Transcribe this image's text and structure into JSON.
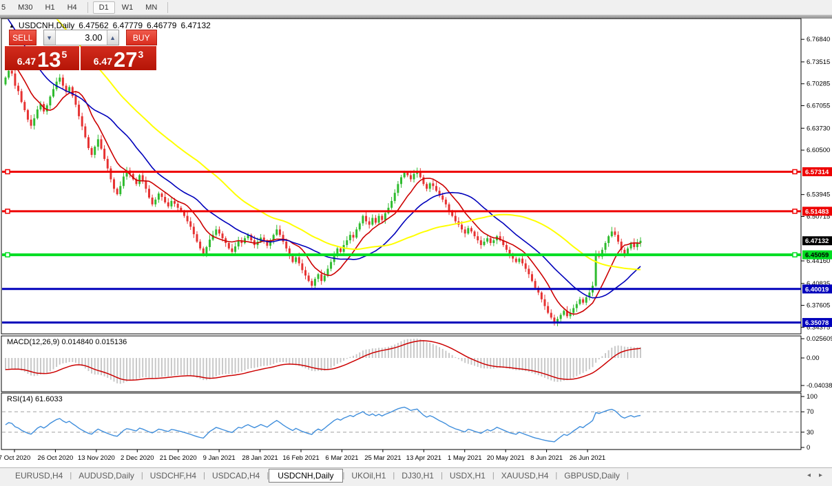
{
  "toolbar": {
    "timeframes": [
      {
        "label": "5",
        "selected": false
      },
      {
        "label": "M30",
        "selected": false
      },
      {
        "label": "H1",
        "selected": false
      },
      {
        "label": "H4",
        "selected": false
      },
      {
        "label": "D1",
        "selected": true
      },
      {
        "label": "W1",
        "selected": false
      },
      {
        "label": "MN",
        "selected": false
      }
    ]
  },
  "symbol_line": {
    "collapse_icon": "▲",
    "symbol": "USDCNH,Daily",
    "open": "6.47562",
    "high": "6.47779",
    "low": "6.46779",
    "close": "6.47132"
  },
  "trade_panel": {
    "sell_label": "SELL",
    "buy_label": "BUY",
    "volume": "3.00",
    "volume_down_icon": "▼",
    "volume_up_icon": "▲",
    "sell_price": {
      "prefix": "6.47",
      "big": "13",
      "sup": "5"
    },
    "buy_price": {
      "prefix": "6.47",
      "big": "27",
      "sup": "3"
    }
  },
  "indicators": {
    "macd_label": "MACD(12,26,9) 0.014840 0.015136",
    "rsi_label": "RSI(14) 61.6033"
  },
  "tab_bar": {
    "tabs": [
      {
        "label": "EURUSD,H4",
        "selected": false
      },
      {
        "label": "AUDUSD,Daily",
        "selected": false
      },
      {
        "label": "USDCHF,H4",
        "selected": false
      },
      {
        "label": "USDCAD,H4",
        "selected": false
      },
      {
        "label": "USDCNH,Daily",
        "selected": true
      },
      {
        "label": "UKOil,H1",
        "selected": false
      },
      {
        "label": "DJ30,H1",
        "selected": false
      },
      {
        "label": "USDX,H1",
        "selected": false
      },
      {
        "label": "XAUUSD,H4",
        "selected": false
      },
      {
        "label": "GBPUSD,Daily",
        "selected": false
      }
    ],
    "left_arrow_icon": "◂",
    "right_arrow_icon": "▸"
  },
  "chart_data": {
    "type": "candlestick",
    "title": "USDCNH Daily with MACD(12,26,9) and RSI(14)",
    "ylim": [
      6.335,
      6.798
    ],
    "ohlc_display": {
      "open": 6.47562,
      "high": 6.47779,
      "low": 6.46779,
      "close": 6.47132
    },
    "price_ticks": [
      "6.76840",
      "6.73515",
      "6.70285",
      "6.67055",
      "6.63730",
      "6.60500",
      "6.53945",
      "6.50715",
      "6.44160",
      "6.40835",
      "6.37605",
      "6.34375"
    ],
    "current_price": 6.47132,
    "levels": [
      {
        "price": 6.57314,
        "color": "#ee0000",
        "text_color": "#ffffff",
        "width": 3,
        "anchors": true
      },
      {
        "price": 6.51483,
        "color": "#ee0000",
        "text_color": "#ffffff",
        "width": 3,
        "anchors": true
      },
      {
        "price": 6.45059,
        "color": "#00dd22",
        "text_color": "#000000",
        "width": 4,
        "anchors": true
      },
      {
        "price": 6.40019,
        "color": "#0000bb",
        "text_color": "#ffffff",
        "width": 3,
        "anchors": false
      },
      {
        "price": 6.35078,
        "color": "#0000bb",
        "text_color": "#ffffff",
        "width": 3,
        "anchors": false
      }
    ],
    "bull_color": "#2fbb2f",
    "bear_color": "#e63232",
    "ma": [
      {
        "period": 10,
        "color": "#cc0000",
        "width": 1.6
      },
      {
        "period": 24,
        "color": "#0000bb",
        "width": 1.6
      },
      {
        "period": 52,
        "color": "#ffff00",
        "width": 2
      }
    ],
    "closes": [
      6.712,
      6.722,
      6.718,
      6.7,
      6.692,
      6.676,
      6.664,
      6.65,
      6.641,
      6.652,
      6.665,
      6.673,
      6.662,
      6.671,
      6.684,
      6.695,
      6.706,
      6.712,
      6.7,
      6.691,
      6.698,
      6.685,
      6.672,
      6.655,
      6.64,
      6.624,
      6.608,
      6.598,
      6.61,
      6.621,
      6.607,
      6.592,
      6.578,
      6.562,
      6.548,
      6.54,
      6.552,
      6.566,
      6.575,
      6.57,
      6.562,
      6.555,
      6.568,
      6.56,
      6.548,
      6.535,
      6.525,
      6.532,
      6.541,
      6.536,
      6.528,
      6.522,
      6.53,
      6.526,
      6.52,
      6.515,
      6.508,
      6.5,
      6.492,
      6.481,
      6.47,
      6.46,
      6.452,
      6.462,
      6.473,
      6.48,
      6.488,
      6.482,
      6.475,
      6.468,
      6.46,
      6.455,
      6.463,
      6.472,
      6.468,
      6.475,
      6.48,
      6.472,
      6.465,
      6.47,
      6.476,
      6.47,
      6.464,
      6.472,
      6.48,
      6.488,
      6.48,
      6.47,
      6.46,
      6.45,
      6.44,
      6.447,
      6.438,
      6.428,
      6.42,
      6.412,
      6.405,
      6.415,
      6.422,
      6.412,
      6.42,
      6.43,
      6.44,
      6.452,
      6.46,
      6.455,
      6.465,
      6.472,
      6.48,
      6.476,
      6.488,
      6.497,
      6.508,
      6.5,
      6.495,
      6.505,
      6.498,
      6.508,
      6.502,
      6.512,
      6.52,
      6.53,
      6.542,
      6.555,
      6.565,
      6.572,
      6.568,
      6.562,
      6.57,
      6.574,
      6.565,
      6.555,
      6.548,
      6.556,
      6.552,
      6.545,
      6.538,
      6.532,
      6.525,
      6.515,
      6.508,
      6.5,
      6.495,
      6.488,
      6.482,
      6.49,
      6.485,
      6.478,
      6.472,
      6.465,
      6.47,
      6.475,
      6.468,
      6.472,
      6.478,
      6.472,
      6.465,
      6.458,
      6.45,
      6.445,
      6.44,
      6.445,
      6.438,
      6.43,
      6.422,
      6.412,
      6.402,
      6.395,
      6.385,
      6.375,
      6.365,
      6.358,
      6.35,
      6.356,
      6.362,
      6.368,
      6.36,
      6.365,
      6.372,
      6.378,
      6.385,
      6.38,
      6.388,
      6.395,
      6.405,
      6.452,
      6.448,
      6.458,
      6.468,
      6.478,
      6.485,
      6.48,
      6.47,
      6.458,
      6.452,
      6.46,
      6.468,
      6.462,
      6.468,
      6.4713
    ],
    "date_ticks": [
      "7 Oct 2020",
      "26 Oct 2020",
      "13 Nov 2020",
      "2 Dec 2020",
      "21 Dec 2020",
      "9 Jan 2021",
      "28 Jan 2021",
      "16 Feb 2021",
      "6 Mar 2021",
      "25 Mar 2021",
      "13 Apr 2021",
      "1 May 2021",
      "20 May 2021",
      "8 Jun 2021",
      "26 Jun 2021"
    ],
    "macd": {
      "params": "12,26,9",
      "value": 0.01484,
      "signal": 0.015136,
      "axis_ticks": [
        "0.025609",
        "0.00",
        "-0.040386"
      ],
      "hist_color": "#c8c8c8",
      "signal_color": "#cc0000"
    },
    "rsi": {
      "period": 14,
      "value": 61.6033,
      "axis_ticks": [
        "100",
        "70",
        "30",
        "0"
      ],
      "upper_level": 70,
      "lower_level": 30,
      "color": "#3f8edc"
    }
  }
}
